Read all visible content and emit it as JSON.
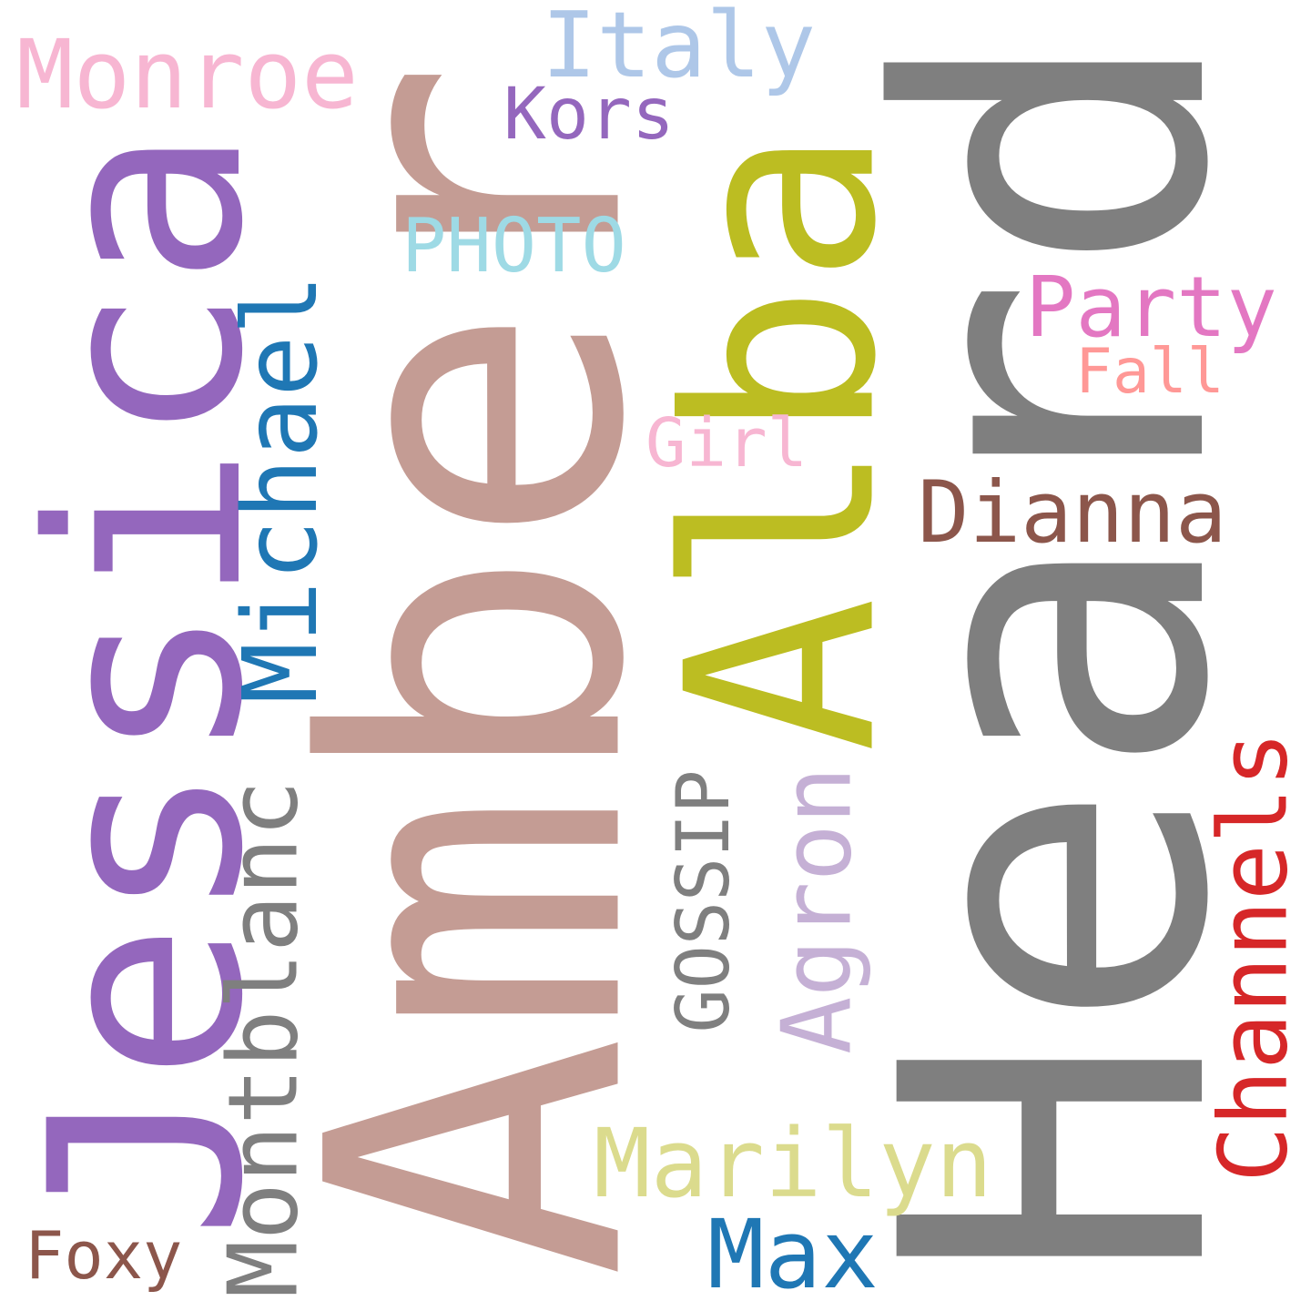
{
  "words": {
    "heard": {
      "text": "Heard",
      "color": "#7f7f7f"
    },
    "amber": {
      "text": "Amber",
      "color": "#c49c94"
    },
    "jessica": {
      "text": "Jessica",
      "color": "#9467bd"
    },
    "alba": {
      "text": "Alba",
      "color": "#bcbd22"
    },
    "michael": {
      "text": "Michael",
      "color": "#1f77b4"
    },
    "montblanc": {
      "text": "Montblanc",
      "color": "#7f7f7f"
    },
    "channels": {
      "text": "Channels",
      "color": "#d62728"
    },
    "agron": {
      "text": "Agron",
      "color": "#c5b0d5"
    },
    "gossip": {
      "text": "GOSSIP",
      "color": "#7f7f7f"
    },
    "monroe": {
      "text": "Monroe",
      "color": "#f7b6d2"
    },
    "italy": {
      "text": "Italy",
      "color": "#aec7e8"
    },
    "kors": {
      "text": "Kors",
      "color": "#9467bd"
    },
    "photo": {
      "text": "PHOTO",
      "color": "#9edae5"
    },
    "party": {
      "text": "Party",
      "color": "#e377c2"
    },
    "fall": {
      "text": "Fall",
      "color": "#ff9896"
    },
    "girl": {
      "text": "Girl",
      "color": "#f7b6d2"
    },
    "dianna": {
      "text": "Dianna",
      "color": "#8c564b"
    },
    "marilyn": {
      "text": "Marilyn",
      "color": "#dbdb8d"
    },
    "max": {
      "text": "Max",
      "color": "#1f77b4"
    },
    "foxy": {
      "text": "Foxy",
      "color": "#8c564b"
    }
  }
}
